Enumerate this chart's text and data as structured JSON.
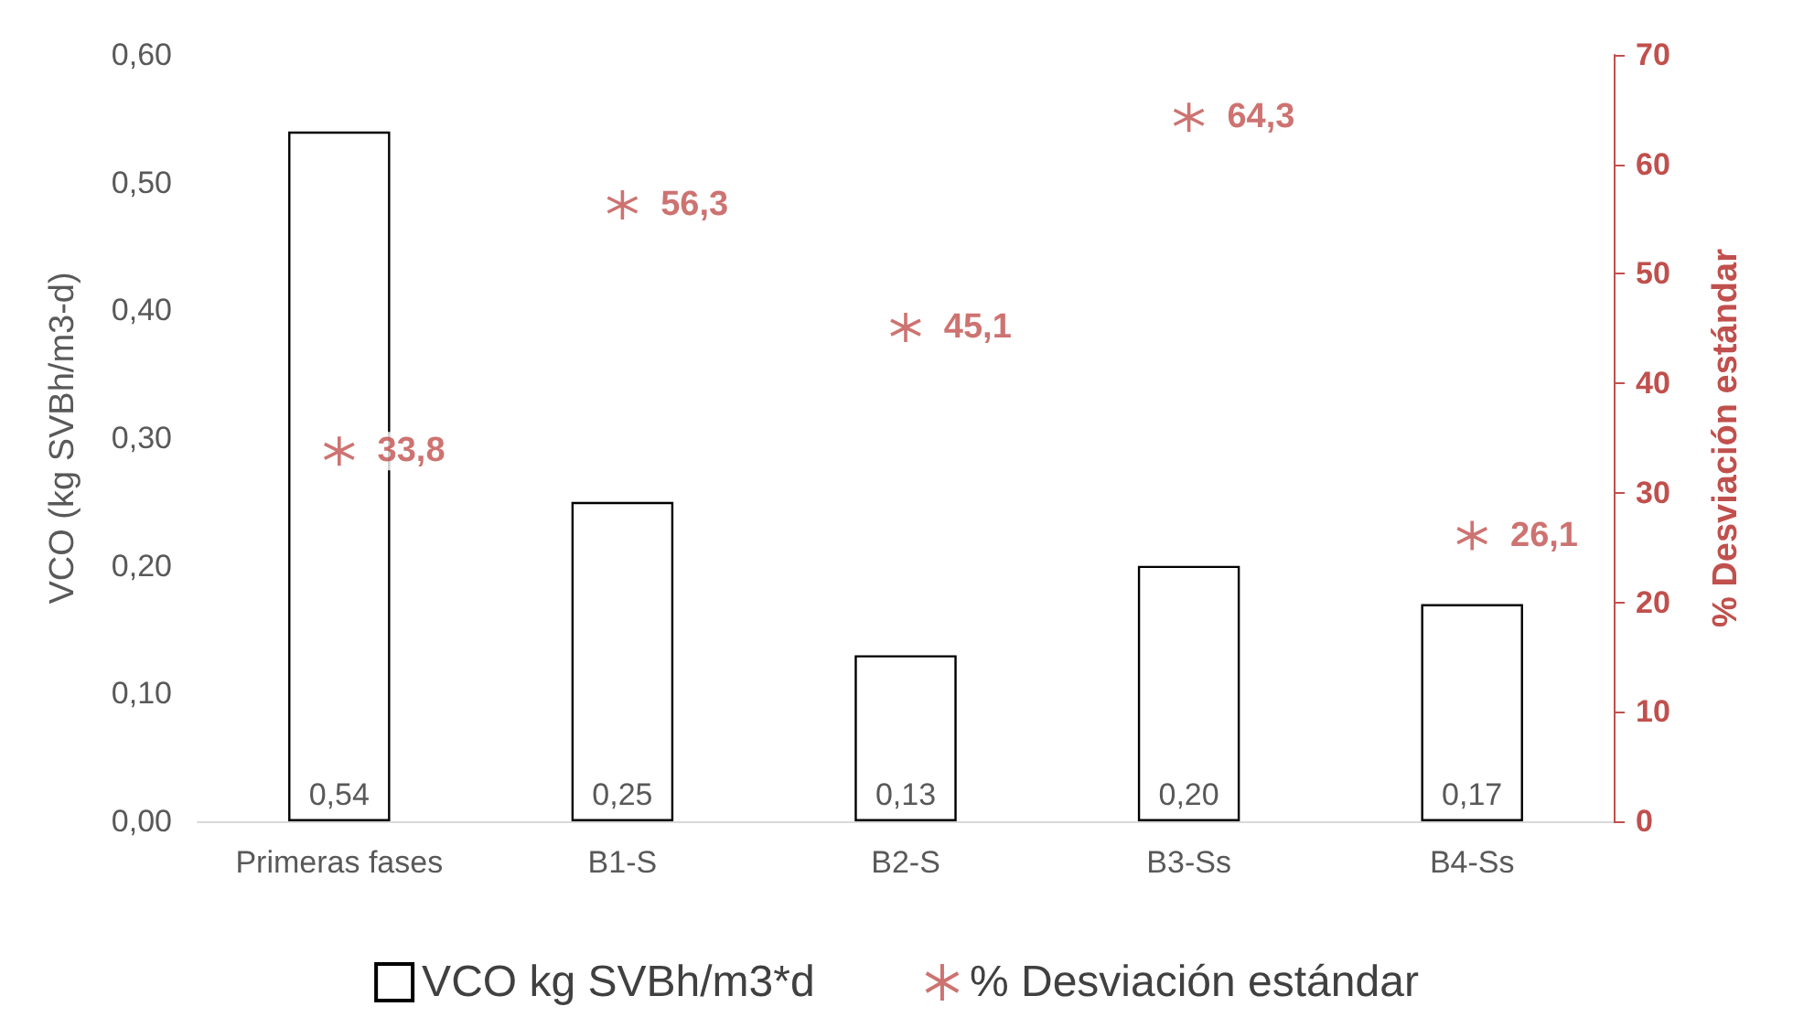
{
  "chart_data": {
    "type": "bar",
    "ylabel": "VCO (kg SVBh/m3-d)",
    "y2label": "% Desviación estándar",
    "categories": [
      "Primeras fases",
      "B1-S",
      "B2-S",
      "B3-Ss",
      "B4-Ss"
    ],
    "series": [
      {
        "name": "VCO kg SVBh/m3*d",
        "color": "#000000",
        "values": [
          0.54,
          0.25,
          0.13,
          0.2,
          0.17
        ],
        "value_labels": [
          "0,54",
          "0,25",
          "0,13",
          "0,20",
          "0,17"
        ]
      },
      {
        "name": "% Desviación estándar",
        "type": "scatter",
        "axis": "y2",
        "color": "#c0504d",
        "marker": "cross",
        "values": [
          33.8,
          56.3,
          45.1,
          64.3,
          26.1
        ],
        "value_labels": [
          "33,8",
          "56,3",
          "45,1",
          "64,3",
          "26,1"
        ]
      }
    ],
    "ylim": [
      0,
      0.6
    ],
    "yticks": [
      {
        "value": 0,
        "label": "0,00"
      },
      {
        "value": 0.1,
        "label": "0,10"
      },
      {
        "value": 0.2,
        "label": "0,20"
      },
      {
        "value": 0.3,
        "label": "0,30"
      },
      {
        "value": 0.4,
        "label": "0,40"
      },
      {
        "value": 0.5,
        "label": "0,50"
      },
      {
        "value": 0.6,
        "label": "0,60"
      }
    ],
    "y2lim": [
      0,
      70
    ],
    "y2ticks": [
      0,
      10,
      20,
      30,
      40,
      50,
      60,
      70
    ],
    "grid": false,
    "legend": "bottom"
  }
}
